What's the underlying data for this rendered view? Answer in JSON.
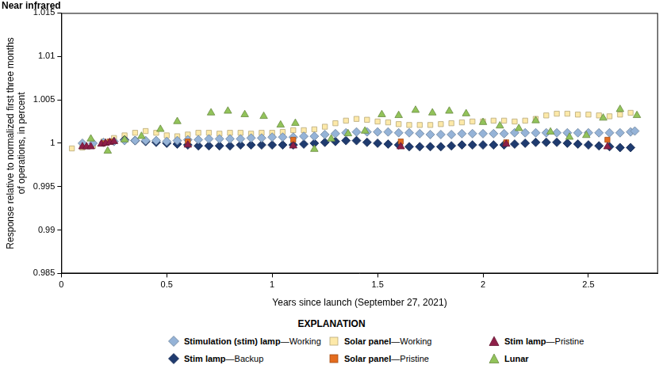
{
  "chart_data": {
    "type": "scatter",
    "title": "Near infrared",
    "xlabel": "Years since launch (September 27, 2021)",
    "ylabel": [
      "Response relative to normalized first three months",
      "of operations, in percent"
    ],
    "legend_title": "EXPLANATION",
    "xlim": [
      0,
      2.83
    ],
    "xticks": [
      0,
      0.5,
      1,
      1.5,
      2,
      2.5
    ],
    "ylim": [
      0.985,
      1.015
    ],
    "yticks": [
      0.985,
      0.99,
      0.995,
      1,
      1.005,
      1.01,
      1.015
    ],
    "grid": false,
    "series": [
      {
        "name": "Stimulation (stim) lamp—Working",
        "color": "#95b3d7",
        "marker": "diamond",
        "x": [
          0.1,
          0.15,
          0.2,
          0.25,
          0.3,
          0.35,
          0.4,
          0.45,
          0.5,
          0.55,
          0.6,
          0.65,
          0.7,
          0.75,
          0.8,
          0.85,
          0.9,
          0.95,
          1.0,
          1.05,
          1.1,
          1.15,
          1.2,
          1.25,
          1.3,
          1.35,
          1.4,
          1.45,
          1.5,
          1.55,
          1.6,
          1.65,
          1.7,
          1.75,
          1.8,
          1.85,
          1.9,
          1.95,
          2.0,
          2.05,
          2.1,
          2.15,
          2.2,
          2.25,
          2.3,
          2.35,
          2.4,
          2.45,
          2.5,
          2.55,
          2.6,
          2.65,
          2.7,
          2.72
        ],
        "values": [
          1.0,
          1.0,
          1.0001,
          1.0002,
          1.0003,
          1.0003,
          1.0003,
          1.0003,
          1.0002,
          1.0003,
          1.0004,
          1.0004,
          1.0005,
          1.0005,
          1.0005,
          1.0005,
          1.0006,
          1.0006,
          1.0007,
          1.0007,
          1.0007,
          1.0008,
          1.0008,
          1.001,
          1.0011,
          1.0012,
          1.0013,
          1.0013,
          1.0013,
          1.0013,
          1.0012,
          1.0012,
          1.0011,
          1.001,
          1.001,
          1.001,
          1.0011,
          1.0011,
          1.0011,
          1.0011,
          1.0011,
          1.0012,
          1.0012,
          1.0012,
          1.0012,
          1.0012,
          1.0012,
          1.0012,
          1.0012,
          1.0012,
          1.0012,
          1.0012,
          1.0013,
          1.0014
        ]
      },
      {
        "name": "Solar panel—Working",
        "color": "#fde9a9",
        "marker": "square",
        "x": [
          0.05,
          0.1,
          0.15,
          0.2,
          0.25,
          0.3,
          0.35,
          0.4,
          0.45,
          0.5,
          0.55,
          0.6,
          0.65,
          0.7,
          0.75,
          0.8,
          0.85,
          0.9,
          0.95,
          1.0,
          1.05,
          1.1,
          1.15,
          1.2,
          1.25,
          1.3,
          1.35,
          1.4,
          1.45,
          1.5,
          1.55,
          1.6,
          1.65,
          1.7,
          1.75,
          1.8,
          1.85,
          1.9,
          1.95,
          2.0,
          2.05,
          2.1,
          2.15,
          2.2,
          2.25,
          2.3,
          2.35,
          2.4,
          2.45,
          2.5,
          2.55,
          2.6,
          2.65,
          2.7
        ],
        "values": [
          0.9994,
          0.9995,
          0.9997,
          1.0002,
          1.0006,
          1.0009,
          1.0012,
          1.0014,
          1.0012,
          1.0009,
          1.0008,
          1.001,
          1.0012,
          1.0012,
          1.0011,
          1.0012,
          1.0012,
          1.0011,
          1.0012,
          1.0012,
          1.0013,
          1.0015,
          1.0015,
          1.0016,
          1.0019,
          1.0023,
          1.0026,
          1.0028,
          1.0027,
          1.0025,
          1.0024,
          1.0022,
          1.0021,
          1.0021,
          1.0021,
          1.0022,
          1.0023,
          1.0024,
          1.0025,
          1.0025,
          1.0026,
          1.0026,
          1.0025,
          1.0026,
          1.0028,
          1.0032,
          1.0034,
          1.0034,
          1.0033,
          1.0033,
          1.0032,
          1.0031,
          1.0033,
          1.0035
        ]
      },
      {
        "name": "Stim lamp—Pristine",
        "color": "#8e1f48",
        "marker": "triangle",
        "x": [
          0.1,
          0.12,
          0.14,
          0.19,
          0.21,
          0.23,
          0.25,
          0.6,
          1.1,
          1.61,
          2.11,
          2.59
        ],
        "values": [
          0.9996,
          0.9996,
          0.9996,
          0.9999,
          1.0,
          1.0001,
          1.0002,
          0.9998,
          0.9997,
          0.9996,
          0.9999,
          0.9996
        ]
      },
      {
        "name": "Stim lamp—Backup",
        "color": "#1f3b6f",
        "marker": "diamond",
        "x": [
          0.3,
          0.35,
          0.4,
          0.45,
          0.5,
          0.55,
          0.6,
          0.65,
          0.7,
          0.75,
          0.8,
          0.85,
          0.9,
          0.95,
          1.0,
          1.05,
          1.1,
          1.15,
          1.2,
          1.25,
          1.3,
          1.35,
          1.4,
          1.45,
          1.5,
          1.55,
          1.6,
          1.65,
          1.7,
          1.75,
          1.8,
          1.85,
          1.9,
          1.95,
          2.0,
          2.05,
          2.1,
          2.15,
          2.2,
          2.25,
          2.3,
          2.35,
          2.4,
          2.45,
          2.5,
          2.55,
          2.6,
          2.65,
          2.7
        ],
        "values": [
          1.0004,
          1.0003,
          1.0002,
          1.0001,
          1.0,
          0.9999,
          0.9998,
          0.9997,
          0.9997,
          0.9997,
          0.9997,
          0.9998,
          0.9998,
          0.9998,
          0.9998,
          0.9998,
          0.9998,
          0.9999,
          1.0,
          1.0001,
          1.0002,
          1.0003,
          1.0003,
          1.0001,
          1.0,
          0.9999,
          0.9998,
          0.9996,
          0.9996,
          0.9996,
          0.9996,
          0.9997,
          0.9998,
          0.9998,
          0.9998,
          0.9998,
          0.9998,
          0.9999,
          1.0,
          1.0001,
          1.0001,
          1.0001,
          1.0,
          0.9999,
          0.9998,
          0.9997,
          0.9996,
          0.9995,
          0.9995
        ]
      },
      {
        "name": "Solar panel—Pristine",
        "color": "#e46c1e",
        "marker": "square",
        "x": [
          0.2,
          0.23,
          0.6,
          1.1,
          1.61,
          2.11,
          2.59
        ],
        "values": [
          1.0,
          1.0002,
          1.0002,
          1.0004,
          1.0002,
          1.0001,
          1.0004
        ]
      },
      {
        "name": "Lunar",
        "color": "#92c35a",
        "marker": "triangle",
        "x": [
          0.14,
          0.22,
          0.3,
          0.38,
          0.47,
          0.55,
          0.71,
          0.79,
          0.87,
          0.96,
          1.04,
          1.11,
          1.2,
          1.28,
          1.36,
          1.44,
          1.52,
          1.6,
          1.68,
          1.76,
          1.84,
          1.92,
          2.0,
          2.08,
          2.17,
          2.25,
          2.32,
          2.41,
          2.49,
          2.57,
          2.65,
          2.73
        ],
        "values": [
          1.0005,
          0.9991,
          1.0004,
          1.0008,
          1.0016,
          1.0025,
          1.0035,
          1.0037,
          1.0033,
          1.0031,
          1.0021,
          1.0023,
          0.9993,
          1.0005,
          1.0011,
          1.0014,
          1.0033,
          1.0032,
          1.0038,
          1.0035,
          1.0037,
          1.0034,
          1.0024,
          1.002,
          1.0017,
          1.0026,
          1.0013,
          1.0007,
          1.0009,
          1.0029,
          1.0039,
          1.0032
        ]
      }
    ]
  }
}
